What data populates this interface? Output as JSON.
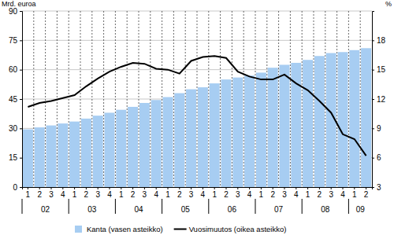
{
  "chart_data": {
    "type": "bar",
    "y_label": "Mrd. euroa",
    "y2_label": "%",
    "categories": [
      "1",
      "2",
      "3",
      "4",
      "1",
      "2",
      "3",
      "4",
      "1",
      "2",
      "3",
      "4",
      "1",
      "2",
      "3",
      "4",
      "1",
      "2",
      "3",
      "4",
      "1",
      "2",
      "3",
      "4",
      "1",
      "2",
      "3",
      "4",
      "1",
      "2"
    ],
    "x_groups": [
      {
        "label": "02",
        "size": 4
      },
      {
        "label": "03",
        "size": 4
      },
      {
        "label": "04",
        "size": 4
      },
      {
        "label": "05",
        "size": 4
      },
      {
        "label": "06",
        "size": 4
      },
      {
        "label": "07",
        "size": 4
      },
      {
        "label": "08",
        "size": 4
      },
      {
        "label": "09",
        "size": 2
      }
    ],
    "series": [
      {
        "name": "Kanta (vasen asteikko)",
        "type": "bar",
        "color": "#a7cdf2",
        "values": [
          29.5,
          30.5,
          31.5,
          32.5,
          33.5,
          35,
          36.5,
          38,
          39.5,
          41,
          43,
          44.5,
          46,
          48,
          50,
          51,
          53,
          55,
          56,
          57,
          58.5,
          61,
          62.5,
          63.5,
          65,
          67,
          68.5,
          69,
          70,
          71
        ]
      },
      {
        "name": "Vuosimuutos (oikea asteikko)",
        "type": "line",
        "axis": "y2",
        "color": "#000000",
        "values": [
          11.2,
          11.6,
          11.8,
          12.1,
          12.4,
          13.3,
          14.1,
          14.8,
          15.3,
          15.7,
          15.6,
          15.1,
          15.0,
          14.6,
          15.9,
          16.3,
          16.4,
          16.2,
          14.8,
          14.3,
          14.0,
          14.0,
          14.5,
          13.6,
          12.9,
          11.8,
          10.6,
          8.4,
          7.9,
          6.2
        ]
      }
    ],
    "ylim": [
      0,
      90
    ],
    "yticks": [
      0,
      15,
      30,
      45,
      60,
      75,
      90
    ],
    "y2lim": [
      3,
      21
    ],
    "y2ticks": [
      3,
      6,
      9,
      12,
      15,
      18
    ],
    "grid": true,
    "legend": "bottom"
  }
}
